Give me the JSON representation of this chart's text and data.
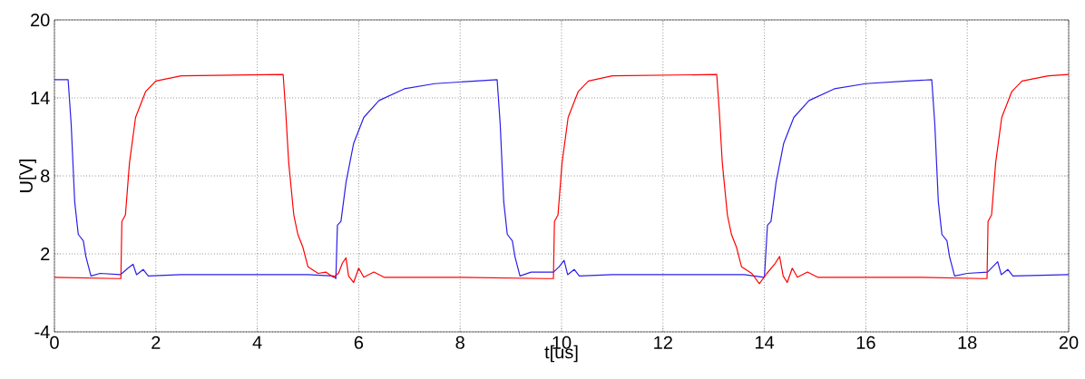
{
  "chart_data": {
    "type": "line",
    "xlabel": "t[us]",
    "ylabel": "U[V]",
    "xlim": [
      0,
      20
    ],
    "ylim": [
      -4,
      20
    ],
    "xticks": [
      0,
      2,
      4,
      6,
      8,
      10,
      12,
      14,
      16,
      18,
      20
    ],
    "yticks": [
      -4,
      2,
      8,
      14,
      20
    ],
    "grid": true,
    "line_style": "solid",
    "marker": "none",
    "series": [
      {
        "color": "#2b1fe8",
        "x": [
          0,
          0.27,
          0.33,
          0.4,
          0.47,
          0.57,
          0.62,
          0.72,
          0.9,
          1.3,
          1.45,
          1.55,
          1.62,
          1.75,
          1.85,
          2.5,
          4.5,
          5.0,
          5.5,
          5.55,
          5.58,
          5.65,
          5.75,
          5.9,
          6.1,
          6.4,
          6.9,
          7.5,
          8.3,
          8.73,
          8.79,
          8.86,
          8.93,
          9.03,
          9.08,
          9.18,
          9.4,
          9.84,
          9.95,
          10.05,
          10.12,
          10.25,
          10.35,
          11,
          13,
          13.6,
          14.0,
          14.06,
          14.13,
          14.23,
          14.38,
          14.58,
          14.88,
          15.38,
          16,
          16.8,
          17.3,
          17.36,
          17.43,
          17.5,
          17.6,
          17.65,
          17.75,
          18.0,
          18.4,
          18.5,
          18.6,
          18.67,
          18.8,
          18.9,
          20
        ],
        "values": [
          15.4,
          15.4,
          12,
          6,
          3.5,
          3,
          1.8,
          0.3,
          0.5,
          0.4,
          0.9,
          1.2,
          0.4,
          0.8,
          0.3,
          0.4,
          0.4,
          0.4,
          0.3,
          0.1,
          4.2,
          4.5,
          7.5,
          10.5,
          12.5,
          13.8,
          14.7,
          15.1,
          15.3,
          15.4,
          12,
          6,
          3.5,
          3,
          1.8,
          0.3,
          0.6,
          0.6,
          1.0,
          1.5,
          0.4,
          0.8,
          0.3,
          0.4,
          0.4,
          0.4,
          0.2,
          4.2,
          4.5,
          7.5,
          10.5,
          12.5,
          13.8,
          14.7,
          15.1,
          15.3,
          15.4,
          12,
          6,
          3.5,
          3,
          1.8,
          0.3,
          0.5,
          0.6,
          1.0,
          1.4,
          0.4,
          0.8,
          0.3,
          0.4
        ]
      },
      {
        "color": "#ff0000",
        "x": [
          0,
          1.25,
          1.31,
          1.33,
          1.4,
          1.48,
          1.6,
          1.8,
          2.0,
          2.5,
          4.51,
          4.56,
          4.62,
          4.72,
          4.8,
          4.9,
          5.0,
          5.2,
          5.35,
          5.5,
          5.6,
          5.68,
          5.75,
          5.8,
          5.9,
          6.0,
          6.1,
          6.3,
          6.5,
          8,
          9.7,
          9.84,
          9.86,
          9.93,
          10.01,
          10.13,
          10.33,
          10.53,
          11,
          13.06,
          13.11,
          13.17,
          13.27,
          13.35,
          13.45,
          13.55,
          13.75,
          13.9,
          14.05,
          14.2,
          14.3,
          14.37,
          14.45,
          14.55,
          14.65,
          14.85,
          15.05,
          17,
          18.3,
          18.39,
          18.41,
          18.48,
          18.56,
          18.68,
          18.88,
          19.08,
          19.6,
          20
        ],
        "values": [
          0.2,
          0.1,
          0.1,
          4.5,
          5,
          9,
          12.5,
          14.5,
          15.3,
          15.7,
          15.8,
          13,
          9,
          5,
          3.5,
          2.5,
          1.0,
          0.5,
          0.6,
          0.2,
          0.5,
          1.3,
          1.7,
          0.3,
          -0.2,
          0.9,
          0.2,
          0.6,
          0.2,
          0.2,
          0.1,
          0.1,
          4.5,
          5,
          9,
          12.5,
          14.5,
          15.3,
          15.7,
          15.8,
          13,
          9,
          5,
          3.5,
          2.5,
          1.0,
          0.5,
          -0.3,
          0.5,
          1.2,
          1.8,
          0.3,
          -0.2,
          0.9,
          0.2,
          0.6,
          0.2,
          0.2,
          0.1,
          0.1,
          4.5,
          5,
          9,
          12.5,
          14.5,
          15.3,
          15.7,
          15.8
        ]
      }
    ]
  }
}
